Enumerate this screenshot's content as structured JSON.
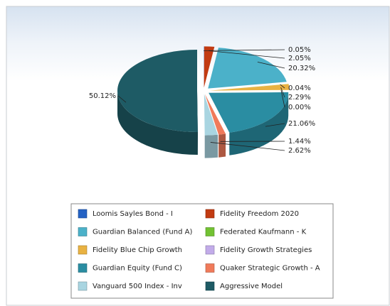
{
  "chart_data": {
    "type": "pie",
    "categories": [
      "Loomis Sayles Bond - I",
      "Fidelity Freedom 2020",
      "Guardian Balanced (Fund A)",
      "Federated Kaufmann - K",
      "Fidelity Blue Chip Growth",
      "Fidelity Growth Strategies",
      "Guardian Equity (Fund C)",
      "Quaker Strategic Growth - A",
      "Vanguard 500 Index - Inv",
      "Aggressive Model"
    ],
    "values": [
      0.05,
      2.05,
      20.32,
      0.04,
      2.29,
      0,
      21.06,
      1.44,
      2.62,
      50.12
    ],
    "value_labels": [
      "0.05%",
      "2.05%",
      "20.32%",
      "0.04%",
      "2.29%",
      "0.00%",
      "21.06%",
      "1.44%",
      "2.62%",
      "50.12%"
    ],
    "colors": [
      "#2462c4",
      "#c23b12",
      "#4bb1c9",
      "#72c232",
      "#e9b242",
      "#c2abe9",
      "#2a8da2",
      "#f07a5a",
      "#a9d5e1",
      "#1e5b65"
    ]
  }
}
